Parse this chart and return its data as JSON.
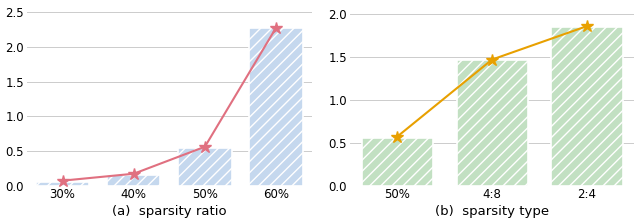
{
  "left": {
    "categories": [
      "30%",
      "40%",
      "50%",
      "60%"
    ],
    "bar_values": [
      0.05,
      0.15,
      0.54,
      2.27
    ],
    "line_values": [
      0.07,
      0.17,
      0.56,
      2.28
    ],
    "bar_color": "#c5d8ee",
    "line_color": "#e07080",
    "ylim": [
      0,
      2.6
    ],
    "yticks": [
      0.0,
      0.5,
      1.0,
      1.5,
      2.0,
      2.5
    ],
    "xlabel": "(a)  sparsity ratio"
  },
  "right": {
    "categories": [
      "50%",
      "4:8",
      "2:4"
    ],
    "bar_values": [
      0.56,
      1.46,
      1.85
    ],
    "line_values": [
      0.57,
      1.47,
      1.86
    ],
    "bar_color": "#c2e0c2",
    "line_color": "#e8a000",
    "ylim": [
      0,
      2.1
    ],
    "yticks": [
      0.0,
      0.5,
      1.0,
      1.5,
      2.0
    ],
    "xlabel": "(b)  sparsity type"
  }
}
